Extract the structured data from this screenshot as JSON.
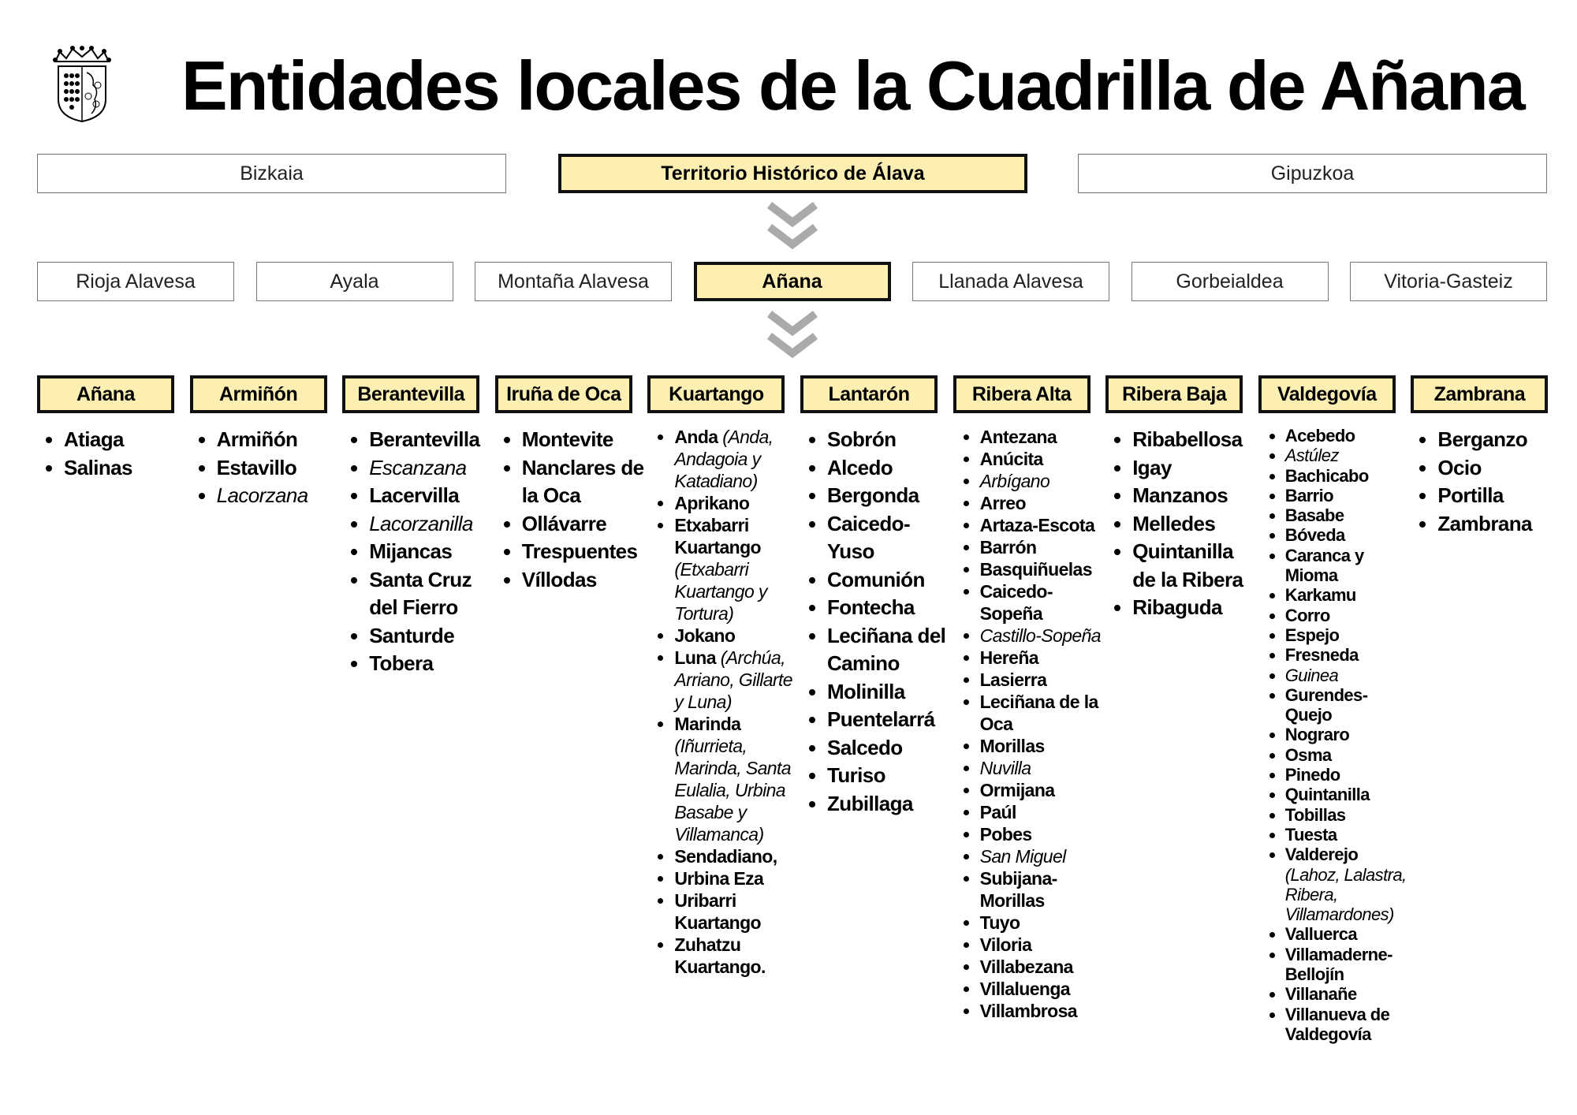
{
  "title": "Entidades locales de la Cuadrilla de Añana",
  "colors": {
    "highlight_fill": "#fdefb2",
    "highlight_border": "#111111",
    "box_border": "#777777",
    "chevron": "#aaaaaa"
  },
  "provinces": [
    {
      "label": "Bizkaia",
      "highlighted": false
    },
    {
      "label": "Territorio Histórico de Álava",
      "highlighted": true
    },
    {
      "label": "Gipuzkoa",
      "highlighted": false
    }
  ],
  "cuadrillas": [
    {
      "label": "Rioja Alavesa",
      "highlighted": false
    },
    {
      "label": "Ayala",
      "highlighted": false
    },
    {
      "label": "Montaña Alavesa",
      "highlighted": false
    },
    {
      "label": "Añana",
      "highlighted": true
    },
    {
      "label": "Llanada Alavesa",
      "highlighted": false
    },
    {
      "label": "Gorbeialdea",
      "highlighted": false
    },
    {
      "label": "Vitoria-Gasteiz",
      "highlighted": false
    }
  ],
  "municipalities": [
    {
      "name": "Añana",
      "size": "big",
      "items": [
        {
          "t": "Atiaga"
        },
        {
          "t": "Salinas"
        }
      ]
    },
    {
      "name": "Armiñón",
      "size": "big",
      "items": [
        {
          "t": "Armiñón"
        },
        {
          "t": "Estavillo"
        },
        {
          "t": "Lacorzana",
          "i": true
        }
      ]
    },
    {
      "name": "Berantevilla",
      "size": "big",
      "items": [
        {
          "t": "Berantevilla"
        },
        {
          "t": "Escanzana",
          "i": true
        },
        {
          "t": "Lacervilla"
        },
        {
          "t": "Lacorzanilla",
          "i": true
        },
        {
          "t": "Mijancas"
        },
        {
          "t": "Santa Cruz del Fierro"
        },
        {
          "t": "Santurde"
        },
        {
          "t": "Tobera"
        }
      ]
    },
    {
      "name": "Iruña de Oca",
      "size": "big",
      "items": [
        {
          "t": "Montevite"
        },
        {
          "t": "Nanclares de la Oca"
        },
        {
          "t": "Ollávarre"
        },
        {
          "t": "Trespuentes"
        },
        {
          "t": "Víllodas"
        }
      ]
    },
    {
      "name": "Kuartango",
      "size": "mid",
      "items": [
        {
          "t": "Anda",
          "n": "(Anda, Andagoia y Katadiano)"
        },
        {
          "t": "Aprikano"
        },
        {
          "t": "Etxabarri Kuartango",
          "n": "(Etxabarri Kuartango y Tortura)"
        },
        {
          "t": "Jokano"
        },
        {
          "t": "Luna",
          "n": "(Archúa, Arriano, Gillarte y Luna)"
        },
        {
          "t": "Marinda",
          "n": "(Iñurrieta, Marinda, Santa Eulalia, Urbina Basabe y Villamanca)"
        },
        {
          "t": "Sendadiano,"
        },
        {
          "t": "Urbina Eza"
        },
        {
          "t": "Uribarri Kuartango"
        },
        {
          "t": "Zuhatzu Kuartango."
        }
      ]
    },
    {
      "name": "Lantarón",
      "size": "big",
      "items": [
        {
          "t": "Sobrón"
        },
        {
          "t": "Alcedo"
        },
        {
          "t": "Bergonda"
        },
        {
          "t": "Caicedo-Yuso"
        },
        {
          "t": "Comunión"
        },
        {
          "t": "Fontecha"
        },
        {
          "t": "Leciñana del Camino"
        },
        {
          "t": "Molinilla"
        },
        {
          "t": "Puentelarrá"
        },
        {
          "t": "Salcedo"
        },
        {
          "t": "Turiso"
        },
        {
          "t": "Zubillaga"
        }
      ]
    },
    {
      "name": "Ribera Alta",
      "size": "mid",
      "items": [
        {
          "t": "Antezana"
        },
        {
          "t": "Anúcita"
        },
        {
          "t": "Arbígano",
          "i": true
        },
        {
          "t": "Arreo"
        },
        {
          "t": "Artaza-Escota"
        },
        {
          "t": "Barrón"
        },
        {
          "t": "Basquiñuelas"
        },
        {
          "t": "Caicedo-Sopeña"
        },
        {
          "t": "Castillo-Sopeña",
          "i": true
        },
        {
          "t": "Hereña"
        },
        {
          "t": "Lasierra"
        },
        {
          "t": "Leciñana de la Oca"
        },
        {
          "t": "Morillas"
        },
        {
          "t": "Nuvilla",
          "i": true
        },
        {
          "t": "Ormijana"
        },
        {
          "t": "Paúl"
        },
        {
          "t": "Pobes"
        },
        {
          "t": "San Miguel",
          "i": true
        },
        {
          "t": "Subijana-Morillas"
        },
        {
          "t": "Tuyo"
        },
        {
          "t": "Viloria"
        },
        {
          "t": "Villabezana"
        },
        {
          "t": "Villaluenga"
        },
        {
          "t": "Villambrosa"
        }
      ]
    },
    {
      "name": "Ribera Baja",
      "size": "big",
      "items": [
        {
          "t": "Ribabellosa"
        },
        {
          "t": "Igay"
        },
        {
          "t": "Manzanos"
        },
        {
          "t": "Melledes"
        },
        {
          "t": "Quintanilla de la Ribera"
        },
        {
          "t": "Ribaguda"
        }
      ]
    },
    {
      "name": "Valdegovía",
      "size": "small",
      "items": [
        {
          "t": "Acebedo"
        },
        {
          "t": "Astúlez",
          "i": true
        },
        {
          "t": "Bachicabo"
        },
        {
          "t": "Barrio"
        },
        {
          "t": "Basabe"
        },
        {
          "t": "Bóveda"
        },
        {
          "t": "Caranca y Mioma"
        },
        {
          "t": "Karkamu"
        },
        {
          "t": "Corro"
        },
        {
          "t": "Espejo"
        },
        {
          "t": "Fresneda"
        },
        {
          "t": "Guinea",
          "i": true
        },
        {
          "t": "Gurendes-Quejo"
        },
        {
          "t": "Nograro"
        },
        {
          "t": "Osma"
        },
        {
          "t": "Pinedo"
        },
        {
          "t": "Quintanilla"
        },
        {
          "t": "Tobillas"
        },
        {
          "t": "Tuesta"
        },
        {
          "t": "Valderejo",
          "n": "(Lahoz, Lalastra, Ribera, Villamardones)"
        },
        {
          "t": "Valluerca"
        },
        {
          "t": "Villamaderne-Bellojín"
        },
        {
          "t": "Villanañe"
        },
        {
          "t": "Villanueva de Valdegovía"
        }
      ]
    },
    {
      "name": "Zambrana",
      "size": "big",
      "items": [
        {
          "t": "Berganzo"
        },
        {
          "t": "Ocio"
        },
        {
          "t": "Portilla"
        },
        {
          "t": "Zambrana"
        }
      ]
    }
  ]
}
